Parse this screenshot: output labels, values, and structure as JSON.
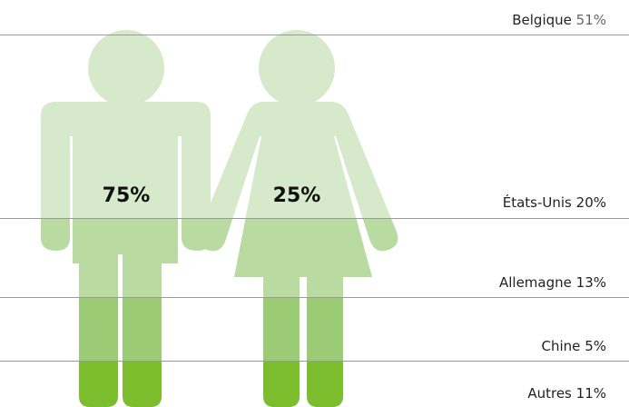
{
  "figures": [
    {
      "label": "75%"
    },
    {
      "label": "25%"
    }
  ],
  "countries": [
    {
      "name": "Belgique",
      "share": "51%"
    },
    {
      "name": "États-Unis",
      "share": "20%"
    },
    {
      "name": "Allemagne",
      "share": "13%"
    },
    {
      "name": "Chine",
      "share": "5%"
    },
    {
      "name": "Autres",
      "share": "11%"
    }
  ]
}
